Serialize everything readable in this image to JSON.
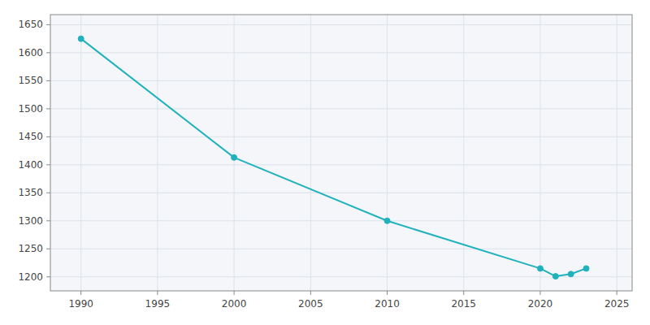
{
  "chart_data": {
    "type": "line",
    "x": [
      1990,
      2000,
      2010,
      2020,
      2021,
      2022,
      2023
    ],
    "values": [
      1625,
      1413,
      1300,
      1215,
      1201,
      1205,
      1215
    ],
    "color": "#20B2BC",
    "marker": "circle",
    "xlim": [
      1988,
      2026
    ],
    "ylim": [
      1175,
      1668
    ],
    "xticks": [
      1990,
      1995,
      2000,
      2005,
      2010,
      2015,
      2020,
      2025
    ],
    "yticks": [
      1200,
      1250,
      1300,
      1350,
      1400,
      1450,
      1500,
      1550,
      1600,
      1650
    ],
    "grid": true
  }
}
